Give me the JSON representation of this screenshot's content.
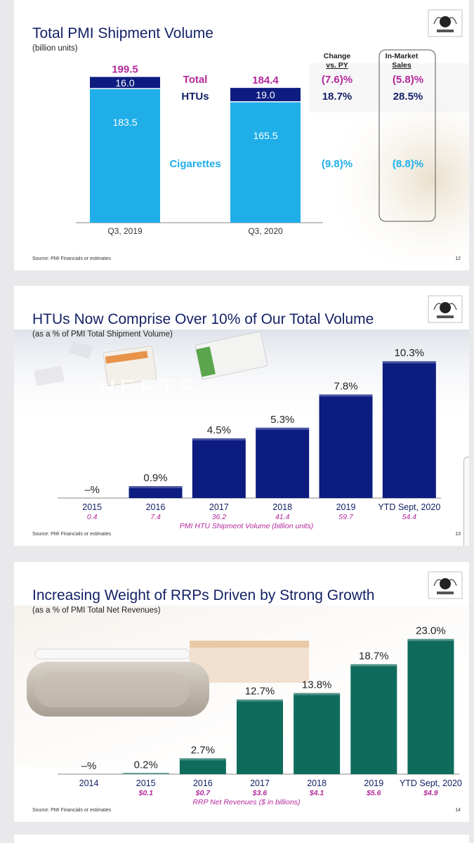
{
  "slides": [
    {
      "title": "Total PMI Shipment Volume",
      "subtitle": "(billion units)",
      "source": "Source: PMI Financials or estimates",
      "page": "12"
    },
    {
      "title": "HTUs Now Comprise Over 10% of Our Total Volume",
      "subtitle": "(as a % of PMI Total Shipment Volume)",
      "source": "Source: PMI Financials or estimates",
      "page": "13"
    },
    {
      "title": "Increasing Weight of RRPs Driven by Strong Growth",
      "subtitle": "(as a % of PMI Total Net Revenues)",
      "source": "Source: PMI Financials or estimates",
      "page": "14"
    }
  ],
  "colors": {
    "navy": "#142266",
    "cyan": "#1faee8",
    "magenta": "#b3289a",
    "teal": "#0f6b5c",
    "bar_navy": "#0d1c80"
  },
  "chart_data": [
    {
      "type": "bar",
      "categories": [
        "Q3, 2019",
        "Q3, 2020"
      ],
      "series": [
        {
          "name": "Cigarettes",
          "values": [
            183.5,
            165.5
          ],
          "labels": [
            "183.5",
            "165.5"
          ]
        },
        {
          "name": "HTUs",
          "values": [
            16.0,
            19.0
          ],
          "labels": [
            "16.0",
            "19.0"
          ]
        }
      ],
      "totals": [
        199.5,
        184.4
      ],
      "total_labels": [
        "199.5",
        "184.4"
      ],
      "row_labels": {
        "total": "Total",
        "htus": "HTUs",
        "cigarettes": "Cigarettes"
      },
      "change_header": [
        "Change",
        "vs. PY"
      ],
      "inmarket_header": [
        "In-Market",
        "Sales"
      ],
      "change_vs_py": {
        "total": "(7.6)%",
        "htus": "18.7%",
        "cigarettes": "(9.8)%"
      },
      "in_market_sales": {
        "total": "(5.8)%",
        "htus": "28.5%",
        "cigarettes": "(8.8)%"
      }
    },
    {
      "type": "bar",
      "categories": [
        "2015",
        "2016",
        "2017",
        "2018",
        "2019",
        "YTD Sept, 2020"
      ],
      "values": [
        0,
        0.9,
        4.5,
        5.3,
        7.8,
        10.3
      ],
      "value_labels": [
        "–%",
        "0.9%",
        "4.5%",
        "5.3%",
        "7.8%",
        "10.3%"
      ],
      "secondary_values": [
        "0.4",
        "7.4",
        "36.2",
        "41.4",
        "59.7",
        "54.4"
      ],
      "secondary_label": "PMI HTU Shipment Volume (billion units)",
      "ylim": [
        0,
        11
      ]
    },
    {
      "type": "bar",
      "categories": [
        "2014",
        "2015",
        "2016",
        "2017",
        "2018",
        "2019",
        "YTD Sept, 2020"
      ],
      "values": [
        0,
        0.2,
        2.7,
        12.7,
        13.8,
        18.7,
        23.0
      ],
      "value_labels": [
        "–%",
        "0.2%",
        "2.7%",
        "12.7%",
        "13.8%",
        "18.7%",
        "23.0%"
      ],
      "secondary_values": [
        "$0.1",
        "$0.7",
        "$3.6",
        "$4.1",
        "$5.6",
        "$4.9"
      ],
      "secondary_label": "RRP Net Revenues ($ in billions)",
      "ylim": [
        0,
        24.5
      ]
    }
  ]
}
